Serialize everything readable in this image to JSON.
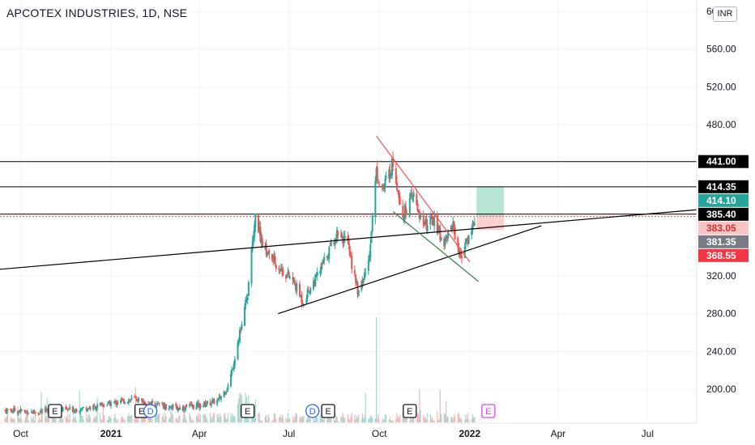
{
  "chart_data": {
    "type": "candlestick",
    "title": "APCOTEX INDUSTRIES, 1D, NSE",
    "currency": "INR",
    "ylim": [
      165,
      612
    ],
    "y_ticks": [
      {
        "value": 200,
        "label": "200.00"
      },
      {
        "value": 240,
        "label": "240.00"
      },
      {
        "value": 280,
        "label": "280.00"
      },
      {
        "value": 320,
        "label": "320.00"
      },
      {
        "value": 480,
        "label": "480.00"
      },
      {
        "value": 520,
        "label": "520.00"
      },
      {
        "value": 560,
        "label": "560.00"
      },
      {
        "value": 600,
        "label": "600.00"
      }
    ],
    "x_ticks": [
      {
        "date": "2020-10-01",
        "label": "Oct"
      },
      {
        "date": "2021-01-01",
        "label": "2021"
      },
      {
        "date": "2021-04-01",
        "label": "Apr"
      },
      {
        "date": "2021-07-01",
        "label": "Jul"
      },
      {
        "date": "2021-10-01",
        "label": "Oct"
      },
      {
        "date": "2022-01-01",
        "label": "2022"
      },
      {
        "date": "2022-04-01",
        "label": "Apr"
      },
      {
        "date": "2022-07-01",
        "label": "Jul"
      }
    ],
    "x_range": [
      "2020-09-10",
      "2022-08-20"
    ],
    "price_path": [
      [
        "2020-09-15",
        178
      ],
      [
        "2020-10-15",
        176
      ],
      [
        "2020-11-15",
        178
      ],
      [
        "2020-12-15",
        181
      ],
      [
        "2021-01-05",
        186
      ],
      [
        "2021-01-25",
        190
      ],
      [
        "2021-02-15",
        184
      ],
      [
        "2021-03-10",
        180
      ],
      [
        "2021-04-01",
        183
      ],
      [
        "2021-04-20",
        188
      ],
      [
        "2021-05-01",
        205
      ],
      [
        "2021-05-10",
        250
      ],
      [
        "2021-05-20",
        300
      ],
      [
        "2021-05-25",
        360
      ],
      [
        "2021-05-28",
        383
      ],
      [
        "2021-06-05",
        350
      ],
      [
        "2021-06-20",
        330
      ],
      [
        "2021-07-05",
        315
      ],
      [
        "2021-07-15",
        293
      ],
      [
        "2021-07-30",
        320
      ],
      [
        "2021-08-10",
        345
      ],
      [
        "2021-08-20",
        368
      ],
      [
        "2021-08-30",
        352
      ],
      [
        "2021-09-10",
        300
      ],
      [
        "2021-09-20",
        335
      ],
      [
        "2021-09-28",
        430
      ],
      [
        "2021-10-05",
        412
      ],
      [
        "2021-10-15",
        440
      ],
      [
        "2021-10-25",
        385
      ],
      [
        "2021-11-05",
        405
      ],
      [
        "2021-11-15",
        372
      ],
      [
        "2021-11-25",
        380
      ],
      [
        "2021-12-05",
        355
      ],
      [
        "2021-12-15",
        375
      ],
      [
        "2021-12-22",
        340
      ],
      [
        "2021-12-30",
        358
      ],
      [
        "2022-01-06",
        380
      ]
    ],
    "horizontal_levels": [
      {
        "value": 441.0,
        "color": "#000000",
        "style": "solid"
      },
      {
        "value": 414.35,
        "color": "#000000",
        "style": "solid"
      },
      {
        "value": 385.4,
        "color": "#000000",
        "style": "solid"
      },
      {
        "value": 383.05,
        "color": "#ef5350",
        "style": "dotted"
      }
    ],
    "trendlines": [
      {
        "start": [
          "2020-09-10",
          327
        ],
        "end": [
          "2022-08-20",
          390
        ],
        "color": "#000000"
      },
      {
        "start": [
          "2021-06-20",
          280
        ],
        "end": [
          "2022-03-15",
          373
        ],
        "color": "#000000"
      },
      {
        "start": [
          "2021-09-28",
          468
        ],
        "end": [
          "2022-01-01",
          335
        ],
        "color": "#ef5350"
      },
      {
        "start": [
          "2021-10-15",
          388
        ],
        "end": [
          "2022-01-10",
          314
        ],
        "color": "#3a7d44"
      }
    ],
    "position_box": {
      "start": "2022-01-08",
      "end": "2022-02-05",
      "entry": 383.05,
      "target": 414.1,
      "stop": 368.55,
      "target_color": "#9fdcc6",
      "stop_color": "#f7c6c4"
    },
    "price_labels": [
      {
        "label": "441.00",
        "value": 441.0,
        "bg": "#000000",
        "fg": "#ffffff"
      },
      {
        "label": "414.35",
        "value": 414.35,
        "bg": "#000000",
        "fg": "#ffffff"
      },
      {
        "label": "414.10",
        "value": 414.1,
        "bg": "#26a69a",
        "fg": "#ffffff"
      },
      {
        "label": "385.40",
        "value": 385.4,
        "bg": "#000000",
        "fg": "#ffffff"
      },
      {
        "label": "383.05",
        "value": 383.05,
        "bg": "#f7c6c4",
        "fg": "#d32f2f"
      },
      {
        "label": "381.35",
        "value": 381.35,
        "bg": "#787b86",
        "fg": "#ffffff"
      },
      {
        "label": "368.55",
        "value": 368.55,
        "bg": "#f23645",
        "fg": "#ffffff"
      }
    ],
    "events": [
      {
        "date": "2020-11-05",
        "label": "E",
        "kind": "earnings"
      },
      {
        "date": "2021-02-01",
        "label": "E",
        "kind": "earnings"
      },
      {
        "date": "2021-02-10",
        "label": "D",
        "kind": "dividend"
      },
      {
        "date": "2021-05-20",
        "label": "E",
        "kind": "earnings"
      },
      {
        "date": "2021-07-25",
        "label": "D",
        "kind": "dividend"
      },
      {
        "date": "2021-08-10",
        "label": "E",
        "kind": "earnings"
      },
      {
        "date": "2021-11-01",
        "label": "E",
        "kind": "earnings"
      },
      {
        "date": "2022-01-20",
        "label": "E",
        "kind": "upcoming-earnings"
      }
    ],
    "colors": {
      "up": "#26a69a",
      "down": "#ef5350",
      "grid": "#f0f3fa"
    }
  }
}
